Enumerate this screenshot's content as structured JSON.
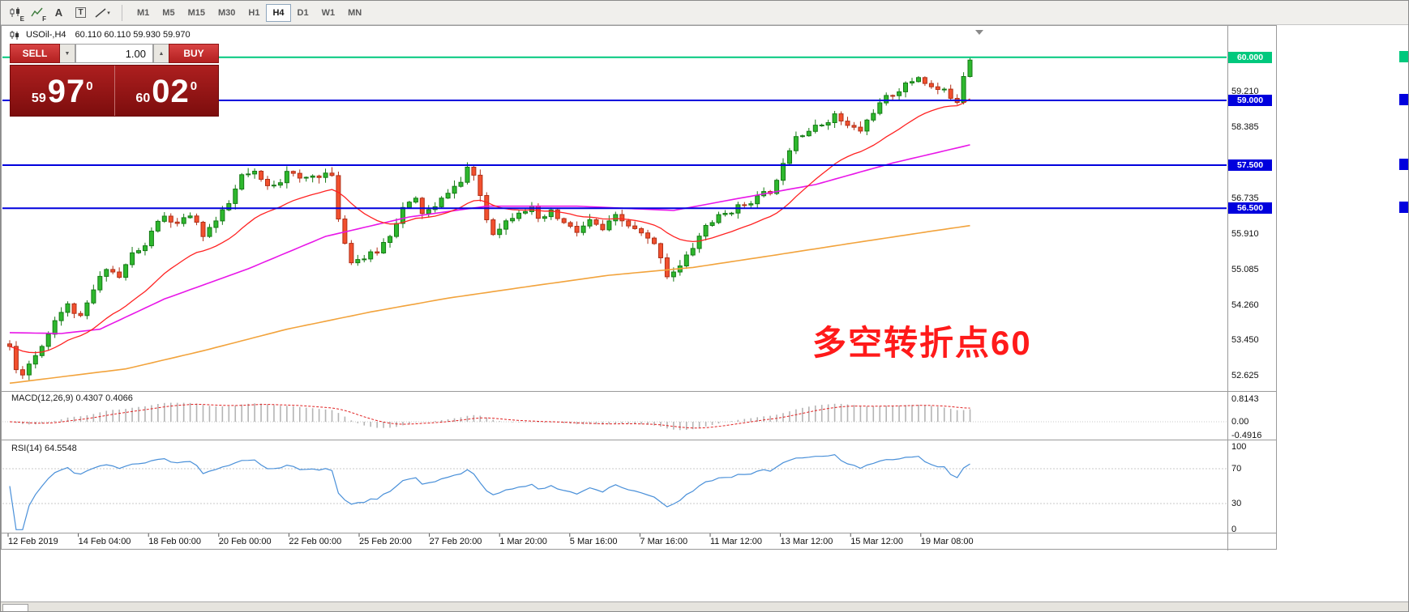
{
  "toolbar": {
    "icons": [
      {
        "name": "candlestick-chart-icon",
        "sub": "E"
      },
      {
        "name": "indicators-icon",
        "sub": "F"
      },
      {
        "name": "insert-text-icon",
        "glyph": "A"
      },
      {
        "name": "text-label-icon",
        "glyph": "T",
        "boxed": true
      },
      {
        "name": "trendline-tools-icon",
        "caret": "▾"
      }
    ],
    "timeframes": [
      "M1",
      "M5",
      "M15",
      "M30",
      "H1",
      "H4",
      "D1",
      "W1",
      "MN"
    ],
    "active_timeframe": "H4"
  },
  "chart": {
    "symbol_label": "USOil-,H4",
    "ohlc_label": "60.110 60.110 59.930 59.970",
    "annotation": "多空转折点60",
    "annotation_color": "#ff1a1a",
    "hlines": [
      {
        "price": 60.0,
        "label": "60.000",
        "color": "#00c87d"
      },
      {
        "price": 59.0,
        "label": "59.000",
        "color": "#0000dd"
      },
      {
        "price": 57.5,
        "label": "57.500",
        "color": "#0000dd"
      },
      {
        "price": 56.5,
        "label": "56.500",
        "color": "#0000dd"
      }
    ],
    "scale_labels": [
      {
        "text": "59.210",
        "price": 59.21
      },
      {
        "text": "58.385",
        "price": 58.385
      },
      {
        "text": "56.735",
        "price": 56.735
      },
      {
        "text": "55.910",
        "price": 55.91
      },
      {
        "text": "55.085",
        "price": 55.085
      },
      {
        "text": "54.260",
        "price": 54.26
      },
      {
        "text": "53.450",
        "price": 53.45
      },
      {
        "text": "52.625",
        "price": 52.625
      }
    ]
  },
  "trade_panel": {
    "sell_label": "SELL",
    "buy_label": "BUY",
    "volume": "1.00",
    "dropdown_glyph": "▼",
    "spinner_glyph": "▲",
    "sell_price": {
      "small": "59",
      "big": "97",
      "sup": "0"
    },
    "buy_price": {
      "small": "60",
      "big": "02",
      "sup": "0"
    }
  },
  "macd_panel": {
    "label": "MACD(12,26,9) 0.4307 0.4066",
    "fast": 12,
    "slow": 26,
    "signal": 9,
    "scale": [
      {
        "text": "0.8143",
        "value": 0.8143
      },
      {
        "text": "0.00",
        "value": 0
      },
      {
        "text": "-0.4916",
        "value": -0.4916
      }
    ]
  },
  "rsi_panel": {
    "label": "RSI(14) 64.5548",
    "period": 14,
    "levels": [
      70,
      30
    ],
    "scale": [
      {
        "text": "100",
        "value": 100
      },
      {
        "text": "70",
        "value": 70
      },
      {
        "text": "30",
        "value": 30
      },
      {
        "text": "0",
        "value": 0
      }
    ]
  },
  "time_axis": [
    "12 Feb 2019",
    "14 Feb 04:00",
    "18 Feb 00:00",
    "20 Feb 00:00",
    "22 Feb 00:00",
    "25 Feb 20:00",
    "27 Feb 20:00",
    "1 Mar 20:00",
    "5 Mar 16:00",
    "7 Mar 16:00",
    "11 Mar 12:00",
    "13 Mar 12:00",
    "15 Mar 12:00",
    "19 Mar 08:00"
  ],
  "chart_data": {
    "type": "candlestick",
    "symbol": "USOil-",
    "timeframe": "H4",
    "ylim": [
      52.27,
      60.73
    ],
    "candles": 150,
    "seed": 11,
    "noise": 0.14,
    "wick": 0.12,
    "price_anchors": [
      [
        0,
        53.3
      ],
      [
        1,
        52.75
      ],
      [
        2,
        52.7
      ],
      [
        4,
        53.1
      ],
      [
        6,
        53.6
      ],
      [
        7,
        53.95
      ],
      [
        9,
        54.25
      ],
      [
        11,
        53.95
      ],
      [
        13,
        54.6
      ],
      [
        15,
        55.15
      ],
      [
        17,
        54.9
      ],
      [
        19,
        55.45
      ],
      [
        21,
        55.6
      ],
      [
        22,
        56.0
      ],
      [
        24,
        56.3
      ],
      [
        26,
        56.1
      ],
      [
        28,
        56.35
      ],
      [
        30,
        55.9
      ],
      [
        32,
        56.2
      ],
      [
        34,
        56.6
      ],
      [
        36,
        57.25
      ],
      [
        38,
        57.3
      ],
      [
        40,
        57.0
      ],
      [
        42,
        57.15
      ],
      [
        43,
        57.4
      ],
      [
        45,
        57.15
      ],
      [
        47,
        57.25
      ],
      [
        49,
        57.3
      ],
      [
        50,
        57.2
      ],
      [
        51,
        56.3
      ],
      [
        52,
        55.7
      ],
      [
        53,
        55.3
      ],
      [
        55,
        55.35
      ],
      [
        57,
        55.5
      ],
      [
        59,
        55.9
      ],
      [
        61,
        56.5
      ],
      [
        63,
        56.7
      ],
      [
        64,
        56.4
      ],
      [
        66,
        56.5
      ],
      [
        68,
        56.9
      ],
      [
        70,
        57.1
      ],
      [
        71,
        57.45
      ],
      [
        72,
        57.2
      ],
      [
        73,
        56.8
      ],
      [
        74,
        56.25
      ],
      [
        75,
        55.95
      ],
      [
        77,
        56.2
      ],
      [
        79,
        56.45
      ],
      [
        81,
        56.5
      ],
      [
        82,
        56.2
      ],
      [
        84,
        56.4
      ],
      [
        86,
        56.15
      ],
      [
        88,
        55.95
      ],
      [
        90,
        56.2
      ],
      [
        92,
        56.0
      ],
      [
        94,
        56.3
      ],
      [
        96,
        56.1
      ],
      [
        98,
        55.9
      ],
      [
        100,
        55.65
      ],
      [
        101,
        55.4
      ],
      [
        102,
        54.95
      ],
      [
        104,
        55.15
      ],
      [
        106,
        55.6
      ],
      [
        108,
        56.1
      ],
      [
        110,
        56.3
      ],
      [
        112,
        56.45
      ],
      [
        114,
        56.6
      ],
      [
        116,
        56.75
      ],
      [
        118,
        56.9
      ],
      [
        119,
        57.1
      ],
      [
        120,
        57.6
      ],
      [
        122,
        58.2
      ],
      [
        124,
        58.3
      ],
      [
        126,
        58.45
      ],
      [
        128,
        58.65
      ],
      [
        130,
        58.4
      ],
      [
        132,
        58.3
      ],
      [
        134,
        58.75
      ],
      [
        136,
        59.05
      ],
      [
        137,
        59.15
      ],
      [
        139,
        59.35
      ],
      [
        141,
        59.55
      ],
      [
        143,
        59.3
      ],
      [
        145,
        59.2
      ],
      [
        147,
        59.0
      ],
      [
        148,
        59.6
      ],
      [
        149,
        59.97
      ]
    ],
    "ma_fast_period": 20,
    "ma_fast_color": "#ff2222",
    "ma_medium_color": "#e816e8",
    "ma_medium_anchors": [
      [
        0,
        53.62
      ],
      [
        8,
        53.6
      ],
      [
        14,
        53.7
      ],
      [
        24,
        54.4
      ],
      [
        37,
        55.1
      ],
      [
        49,
        55.85
      ],
      [
        62,
        56.3
      ],
      [
        74,
        56.55
      ],
      [
        88,
        56.55
      ],
      [
        103,
        56.45
      ],
      [
        112,
        56.7
      ],
      [
        125,
        57.05
      ],
      [
        137,
        57.55
      ],
      [
        149,
        57.97
      ]
    ],
    "ma_slow_color": "#f2a33c",
    "ma_slow_anchors": [
      [
        0,
        52.45
      ],
      [
        18,
        52.78
      ],
      [
        30,
        53.2
      ],
      [
        43,
        53.7
      ],
      [
        56,
        54.1
      ],
      [
        68,
        54.42
      ],
      [
        81,
        54.7
      ],
      [
        93,
        54.95
      ],
      [
        106,
        55.13
      ],
      [
        118,
        55.4
      ],
      [
        131,
        55.7
      ],
      [
        143,
        55.97
      ],
      [
        149,
        56.1
      ]
    ],
    "colors": {
      "up": "#157a15",
      "up_fill": "#2eb82e",
      "down": "#b03018",
      "down_fill": "#f2502e"
    }
  }
}
